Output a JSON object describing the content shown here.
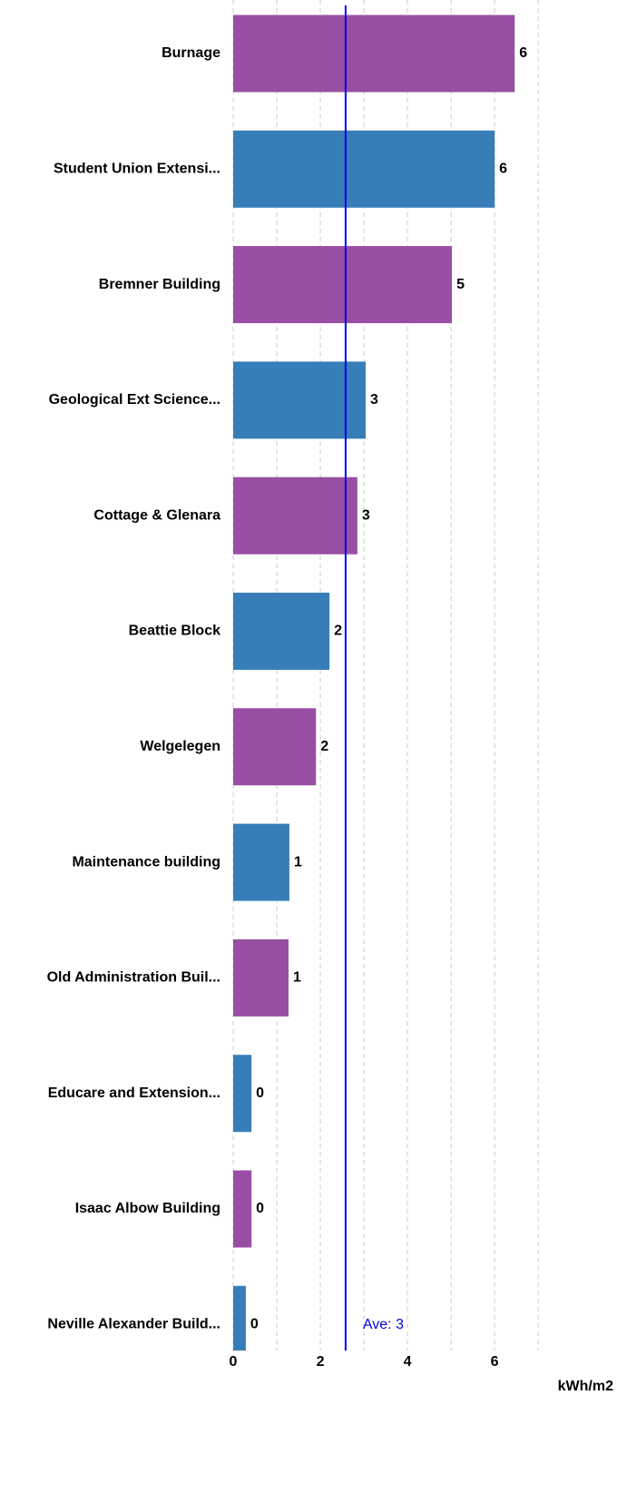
{
  "chart_data": {
    "type": "barh",
    "categories": [
      "Burnage",
      "Student Union Extensi...",
      "Bremner Building",
      "Geological Ext Science...",
      "Cottage & Glenara",
      "Beattie Block",
      "Welgelegen",
      "Maintenance building",
      "Old Administration Buil...",
      "Educare and Extension...",
      "Isaac Albow Building",
      "Neville Alexander Build..."
    ],
    "values": [
      6.46,
      6.0,
      5.02,
      3.04,
      2.85,
      2.21,
      1.9,
      1.29,
      1.27,
      0.42,
      0.42,
      0.29
    ],
    "value_labels": [
      "6",
      "6",
      "5",
      "3",
      "3",
      "2",
      "2",
      "1",
      "1",
      "0",
      "0",
      "0"
    ],
    "colors": [
      "#984ea3",
      "#377eb8",
      "#984ea3",
      "#377eb8",
      "#984ea3",
      "#377eb8",
      "#984ea3",
      "#377eb8",
      "#984ea3",
      "#377eb8",
      "#984ea3",
      "#377eb8"
    ],
    "xlim": [
      0,
      8.6
    ],
    "xticks": [
      0,
      2,
      4,
      6
    ],
    "minor_grid": [
      1,
      3,
      5,
      7
    ],
    "grid": true,
    "xlabel": "kWh/m2",
    "average": {
      "value": 2.58,
      "label": "Ave: 3",
      "color": "#0000ee"
    }
  }
}
